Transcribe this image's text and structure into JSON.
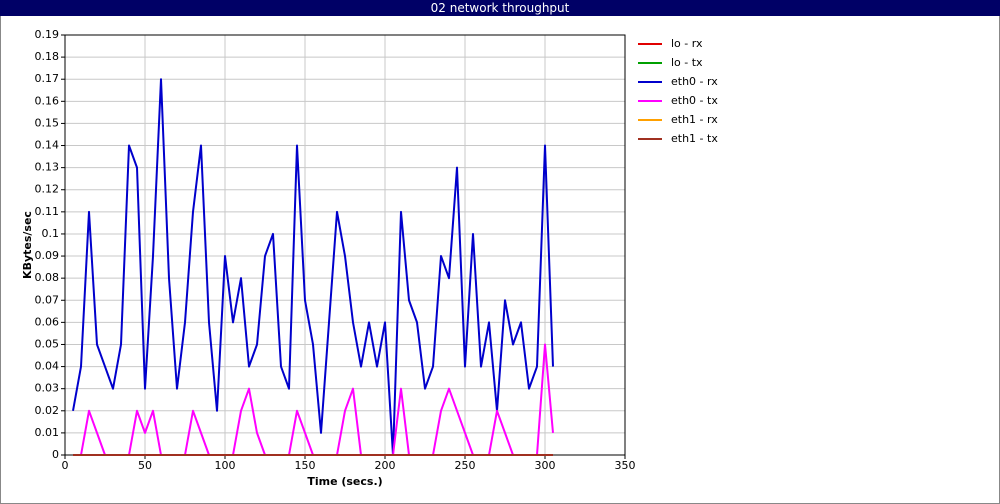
{
  "chart_data": {
    "type": "line",
    "title": "02 network throughput",
    "xlabel": "Time (secs.)",
    "ylabel": "KBytes/sec",
    "x": [
      5,
      10,
      15,
      20,
      25,
      30,
      35,
      40,
      45,
      50,
      55,
      60,
      65,
      70,
      75,
      80,
      85,
      90,
      95,
      100,
      105,
      110,
      115,
      120,
      125,
      130,
      135,
      140,
      145,
      150,
      155,
      160,
      165,
      170,
      175,
      180,
      185,
      190,
      195,
      200,
      205,
      210,
      215,
      220,
      225,
      230,
      235,
      240,
      245,
      250,
      255,
      260,
      265,
      270,
      275,
      280,
      285,
      290,
      295,
      300,
      305
    ],
    "series": [
      {
        "name": "lo - rx",
        "color": "#e00000",
        "values": [
          0,
          0,
          0,
          0,
          0,
          0,
          0,
          0,
          0,
          0,
          0,
          0,
          0,
          0,
          0,
          0,
          0,
          0,
          0,
          0,
          0,
          0,
          0,
          0,
          0,
          0,
          0,
          0,
          0,
          0,
          0,
          0,
          0,
          0,
          0,
          0,
          0,
          0,
          0,
          0,
          0,
          0,
          0,
          0,
          0,
          0,
          0,
          0,
          0,
          0,
          0,
          0,
          0,
          0,
          0,
          0,
          0,
          0,
          0,
          0,
          0
        ]
      },
      {
        "name": "lo - tx",
        "color": "#00a000",
        "values": [
          0,
          0,
          0,
          0,
          0,
          0,
          0,
          0,
          0,
          0,
          0,
          0,
          0,
          0,
          0,
          0,
          0,
          0,
          0,
          0,
          0,
          0,
          0,
          0,
          0,
          0,
          0,
          0,
          0,
          0,
          0,
          0,
          0,
          0,
          0,
          0,
          0,
          0,
          0,
          0,
          0,
          0,
          0,
          0,
          0,
          0,
          0,
          0,
          0,
          0,
          0,
          0,
          0,
          0,
          0,
          0,
          0,
          0,
          0,
          0,
          0
        ]
      },
      {
        "name": "eth0 - rx",
        "color": "#0000cc",
        "values": [
          0.02,
          0.04,
          0.11,
          0.05,
          0.04,
          0.03,
          0.05,
          0.14,
          0.13,
          0.03,
          0.09,
          0.17,
          0.08,
          0.03,
          0.06,
          0.11,
          0.14,
          0.06,
          0.02,
          0.09,
          0.06,
          0.08,
          0.04,
          0.05,
          0.09,
          0.1,
          0.04,
          0.03,
          0.14,
          0.07,
          0.05,
          0.01,
          0.06,
          0.11,
          0.09,
          0.06,
          0.04,
          0.06,
          0.04,
          0.06,
          0,
          0.11,
          0.07,
          0.06,
          0.03,
          0.04,
          0.09,
          0.08,
          0.13,
          0.04,
          0.1,
          0.04,
          0.06,
          0.02,
          0.07,
          0.05,
          0.06,
          0.03,
          0.04,
          0.14,
          0.04
        ]
      },
      {
        "name": "eth0 - tx",
        "color": "#ff00ff",
        "values": [
          0,
          0,
          0.02,
          0.01,
          0,
          0,
          0,
          0,
          0.02,
          0.01,
          0.02,
          0,
          0,
          0,
          0,
          0.02,
          0.01,
          0,
          0,
          0,
          0,
          0.02,
          0.03,
          0.01,
          0,
          0,
          0,
          0,
          0.02,
          0.01,
          0,
          0,
          0,
          0,
          0.02,
          0.03,
          0,
          0,
          0,
          0,
          0,
          0.03,
          0,
          0,
          0,
          0,
          0.02,
          0.03,
          0.02,
          0.01,
          0,
          0,
          0,
          0.02,
          0.01,
          0,
          0,
          0,
          0,
          0.05,
          0.01
        ]
      },
      {
        "name": "eth1 - rx",
        "color": "#ffa000",
        "values": [
          0,
          0,
          0,
          0,
          0,
          0,
          0,
          0,
          0,
          0,
          0,
          0,
          0,
          0,
          0,
          0,
          0,
          0,
          0,
          0,
          0,
          0,
          0,
          0,
          0,
          0,
          0,
          0,
          0,
          0,
          0,
          0,
          0,
          0,
          0,
          0,
          0,
          0,
          0,
          0,
          0,
          0,
          0,
          0,
          0,
          0,
          0,
          0,
          0,
          0,
          0,
          0,
          0,
          0,
          0,
          0,
          0,
          0,
          0,
          0,
          0
        ]
      },
      {
        "name": "eth1 - tx",
        "color": "#a03020",
        "values": [
          0,
          0,
          0,
          0,
          0,
          0,
          0,
          0,
          0,
          0,
          0,
          0,
          0,
          0,
          0,
          0,
          0,
          0,
          0,
          0,
          0,
          0,
          0,
          0,
          0,
          0,
          0,
          0,
          0,
          0,
          0,
          0,
          0,
          0,
          0,
          0,
          0,
          0,
          0,
          0,
          0,
          0,
          0,
          0,
          0,
          0,
          0,
          0,
          0,
          0,
          0,
          0,
          0,
          0,
          0,
          0,
          0,
          0,
          0,
          0,
          0
        ]
      }
    ],
    "xlim": [
      0,
      350
    ],
    "xticks": [
      0,
      50,
      100,
      150,
      200,
      250,
      300,
      350
    ],
    "ylim": [
      0,
      0.19
    ],
    "yticks": [
      0,
      0.01,
      0.02,
      0.03,
      0.04,
      0.05,
      0.06,
      0.07,
      0.08,
      0.09,
      0.1,
      0.11,
      0.12,
      0.13,
      0.14,
      0.15,
      0.16,
      0.17,
      0.18,
      0.19
    ],
    "grid": true
  }
}
